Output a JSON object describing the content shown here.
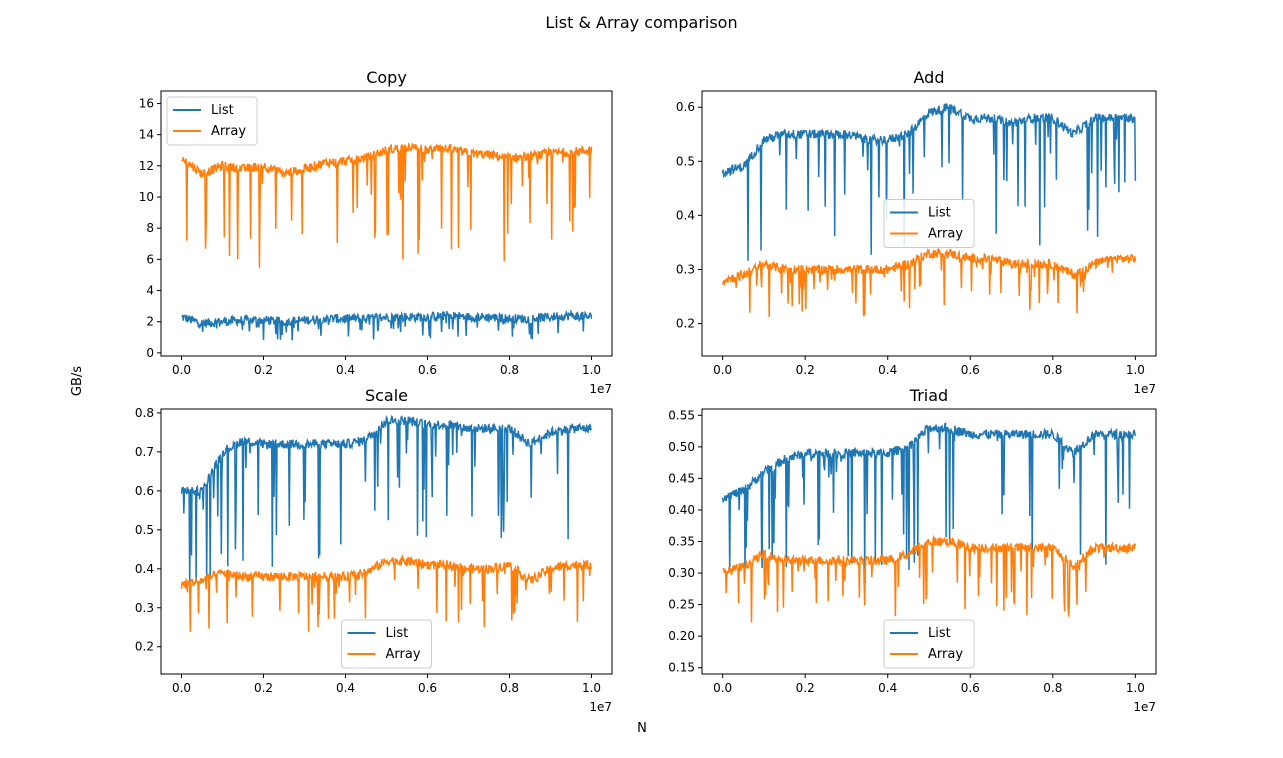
{
  "figure": {
    "title": "List & Array comparison",
    "xlabel": "N",
    "ylabel": "GB/s",
    "x_multiplier": "1e7"
  },
  "chart_data": [
    {
      "type": "line",
      "title": "Copy",
      "xlim": [
        -0.05,
        1.05
      ],
      "ylim": [
        -0.2,
        16.8
      ],
      "xticks": [
        "0.0",
        "0.2",
        "0.4",
        "0.6",
        "0.8",
        "1.0"
      ],
      "xtick_values": [
        0,
        0.2,
        0.4,
        0.6,
        0.8,
        1.0
      ],
      "yticks": [
        "0",
        "2",
        "4",
        "6",
        "8",
        "10",
        "12",
        "14",
        "16"
      ],
      "ytick_values": [
        0,
        2,
        4,
        6,
        8,
        10,
        12,
        14,
        16
      ],
      "legend_position": "upper-left",
      "series": [
        {
          "name": "List",
          "color": "#1f77b4",
          "x": [
            0.0,
            0.05,
            0.1,
            0.15,
            0.2,
            0.25,
            0.3,
            0.35,
            0.4,
            0.45,
            0.5,
            0.55,
            0.6,
            0.65,
            0.7,
            0.75,
            0.8,
            0.85,
            0.9,
            0.95,
            1.0
          ],
          "y": [
            2.3,
            1.9,
            2.0,
            2.1,
            2.1,
            2.0,
            2.1,
            2.2,
            2.2,
            2.2,
            2.3,
            2.3,
            2.3,
            2.4,
            2.3,
            2.3,
            2.2,
            2.2,
            2.3,
            2.4,
            2.3
          ]
        },
        {
          "name": "Array",
          "color": "#ff7f0e",
          "x": [
            0.0,
            0.05,
            0.1,
            0.15,
            0.2,
            0.25,
            0.3,
            0.35,
            0.4,
            0.45,
            0.5,
            0.55,
            0.6,
            0.65,
            0.7,
            0.75,
            0.8,
            0.85,
            0.9,
            0.95,
            1.0
          ],
          "y": [
            12.5,
            11.5,
            12.0,
            11.8,
            12.0,
            11.5,
            11.8,
            12.2,
            12.3,
            12.5,
            13.0,
            13.2,
            13.0,
            13.1,
            12.8,
            12.7,
            12.5,
            12.6,
            12.8,
            12.9,
            13.0
          ]
        }
      ]
    },
    {
      "type": "line",
      "title": "Add",
      "xlim": [
        -0.05,
        1.05
      ],
      "ylim": [
        0.14,
        0.63
      ],
      "xticks": [
        "0.0",
        "0.2",
        "0.4",
        "0.6",
        "0.8",
        "1.0"
      ],
      "xtick_values": [
        0,
        0.2,
        0.4,
        0.6,
        0.8,
        1.0
      ],
      "yticks": [
        "0.2",
        "0.3",
        "0.4",
        "0.5",
        "0.6"
      ],
      "ytick_values": [
        0.2,
        0.3,
        0.4,
        0.5,
        0.6
      ],
      "legend_position": "center",
      "series": [
        {
          "name": "List",
          "color": "#1f77b4",
          "x": [
            0.0,
            0.05,
            0.1,
            0.15,
            0.2,
            0.25,
            0.3,
            0.35,
            0.4,
            0.45,
            0.5,
            0.55,
            0.6,
            0.65,
            0.7,
            0.75,
            0.8,
            0.85,
            0.9,
            0.95,
            1.0
          ],
          "y": [
            0.48,
            0.49,
            0.54,
            0.55,
            0.55,
            0.55,
            0.55,
            0.54,
            0.54,
            0.55,
            0.59,
            0.6,
            0.58,
            0.58,
            0.57,
            0.58,
            0.58,
            0.55,
            0.58,
            0.58,
            0.58
          ]
        },
        {
          "name": "Array",
          "color": "#ff7f0e",
          "x": [
            0.0,
            0.05,
            0.1,
            0.15,
            0.2,
            0.25,
            0.3,
            0.35,
            0.4,
            0.45,
            0.5,
            0.55,
            0.6,
            0.65,
            0.7,
            0.75,
            0.8,
            0.85,
            0.9,
            0.95,
            1.0
          ],
          "y": [
            0.28,
            0.29,
            0.31,
            0.3,
            0.3,
            0.3,
            0.3,
            0.3,
            0.3,
            0.31,
            0.33,
            0.33,
            0.32,
            0.32,
            0.31,
            0.31,
            0.31,
            0.29,
            0.31,
            0.32,
            0.32
          ]
        }
      ]
    },
    {
      "type": "line",
      "title": "Scale",
      "xlim": [
        -0.05,
        1.05
      ],
      "ylim": [
        0.13,
        0.81
      ],
      "xticks": [
        "0.0",
        "0.2",
        "0.4",
        "0.6",
        "0.8",
        "1.0"
      ],
      "xtick_values": [
        0,
        0.2,
        0.4,
        0.6,
        0.8,
        1.0
      ],
      "yticks": [
        "0.2",
        "0.3",
        "0.4",
        "0.5",
        "0.6",
        "0.7",
        "0.8"
      ],
      "ytick_values": [
        0.2,
        0.3,
        0.4,
        0.5,
        0.6,
        0.7,
        0.8
      ],
      "legend_position": "lower-center",
      "series": [
        {
          "name": "List",
          "color": "#1f77b4",
          "x": [
            0.0,
            0.05,
            0.1,
            0.15,
            0.2,
            0.25,
            0.3,
            0.35,
            0.4,
            0.45,
            0.5,
            0.55,
            0.6,
            0.65,
            0.7,
            0.75,
            0.8,
            0.85,
            0.9,
            0.95,
            1.0
          ],
          "y": [
            0.6,
            0.6,
            0.7,
            0.73,
            0.72,
            0.72,
            0.72,
            0.72,
            0.72,
            0.73,
            0.78,
            0.78,
            0.77,
            0.77,
            0.76,
            0.76,
            0.76,
            0.72,
            0.75,
            0.76,
            0.76
          ]
        },
        {
          "name": "Array",
          "color": "#ff7f0e",
          "x": [
            0.0,
            0.05,
            0.1,
            0.15,
            0.2,
            0.25,
            0.3,
            0.35,
            0.4,
            0.45,
            0.5,
            0.55,
            0.6,
            0.65,
            0.7,
            0.75,
            0.8,
            0.85,
            0.9,
            0.95,
            1.0
          ],
          "y": [
            0.36,
            0.37,
            0.39,
            0.38,
            0.38,
            0.38,
            0.38,
            0.38,
            0.38,
            0.39,
            0.42,
            0.42,
            0.41,
            0.41,
            0.4,
            0.4,
            0.41,
            0.37,
            0.4,
            0.41,
            0.41
          ]
        }
      ]
    },
    {
      "type": "line",
      "title": "Triad",
      "xlim": [
        -0.05,
        1.05
      ],
      "ylim": [
        0.14,
        0.56
      ],
      "xticks": [
        "0.0",
        "0.2",
        "0.4",
        "0.6",
        "0.8",
        "1.0"
      ],
      "xtick_values": [
        0,
        0.2,
        0.4,
        0.6,
        0.8,
        1.0
      ],
      "yticks": [
        "0.15",
        "0.20",
        "0.25",
        "0.30",
        "0.35",
        "0.40",
        "0.45",
        "0.50",
        "0.55"
      ],
      "ytick_values": [
        0.15,
        0.2,
        0.25,
        0.3,
        0.35,
        0.4,
        0.45,
        0.5,
        0.55
      ],
      "legend_position": "lower-center",
      "series": [
        {
          "name": "List",
          "color": "#1f77b4",
          "x": [
            0.0,
            0.05,
            0.1,
            0.15,
            0.2,
            0.25,
            0.3,
            0.35,
            0.4,
            0.45,
            0.5,
            0.55,
            0.6,
            0.65,
            0.7,
            0.75,
            0.8,
            0.85,
            0.9,
            0.95,
            1.0
          ],
          "y": [
            0.42,
            0.43,
            0.46,
            0.48,
            0.49,
            0.49,
            0.49,
            0.49,
            0.49,
            0.5,
            0.53,
            0.53,
            0.52,
            0.52,
            0.52,
            0.52,
            0.52,
            0.49,
            0.52,
            0.52,
            0.52
          ]
        },
        {
          "name": "Array",
          "color": "#ff7f0e",
          "x": [
            0.0,
            0.05,
            0.1,
            0.15,
            0.2,
            0.25,
            0.3,
            0.35,
            0.4,
            0.45,
            0.5,
            0.55,
            0.6,
            0.65,
            0.7,
            0.75,
            0.8,
            0.85,
            0.9,
            0.95,
            1.0
          ],
          "y": [
            0.3,
            0.31,
            0.33,
            0.32,
            0.32,
            0.32,
            0.32,
            0.32,
            0.32,
            0.33,
            0.35,
            0.35,
            0.34,
            0.34,
            0.34,
            0.34,
            0.34,
            0.31,
            0.34,
            0.34,
            0.34
          ]
        }
      ]
    }
  ]
}
